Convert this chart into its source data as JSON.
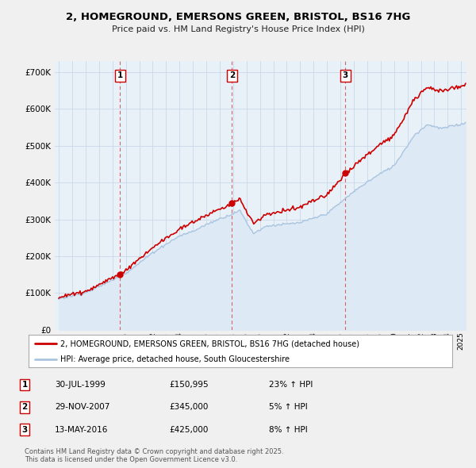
{
  "title": "2, HOMEGROUND, EMERSONS GREEN, BRISTOL, BS16 7HG",
  "subtitle": "Price paid vs. HM Land Registry's House Price Index (HPI)",
  "ylim": [
    0,
    730000
  ],
  "yticks": [
    0,
    100000,
    200000,
    300000,
    400000,
    500000,
    600000,
    700000
  ],
  "ytick_labels": [
    "£0",
    "£100K",
    "£200K",
    "£300K",
    "£400K",
    "£500K",
    "£600K",
    "£700K"
  ],
  "xlim_start": 1994.7,
  "xlim_end": 2025.4,
  "hpi_color": "#aac4e0",
  "hpi_fill_color": "#ddeaf5",
  "price_color": "#cc0000",
  "sale_dates": [
    1999.58,
    2007.92,
    2016.37
  ],
  "sale_prices": [
    150995,
    345000,
    425000
  ],
  "sale_labels": [
    "1",
    "2",
    "3"
  ],
  "legend_line1": "2, HOMEGROUND, EMERSONS GREEN, BRISTOL, BS16 7HG (detached house)",
  "legend_line2": "HPI: Average price, detached house, South Gloucestershire",
  "table_data": [
    [
      "1",
      "30-JUL-1999",
      "£150,995",
      "23% ↑ HPI"
    ],
    [
      "2",
      "29-NOV-2007",
      "£345,000",
      "5% ↑ HPI"
    ],
    [
      "3",
      "13-MAY-2016",
      "£425,000",
      "8% ↑ HPI"
    ]
  ],
  "footer": "Contains HM Land Registry data © Crown copyright and database right 2025.\nThis data is licensed under the Open Government Licence v3.0.",
  "background_color": "#f0f0f0",
  "plot_bg_color": "#e8f0f8",
  "grid_color": "#c8d8e8"
}
